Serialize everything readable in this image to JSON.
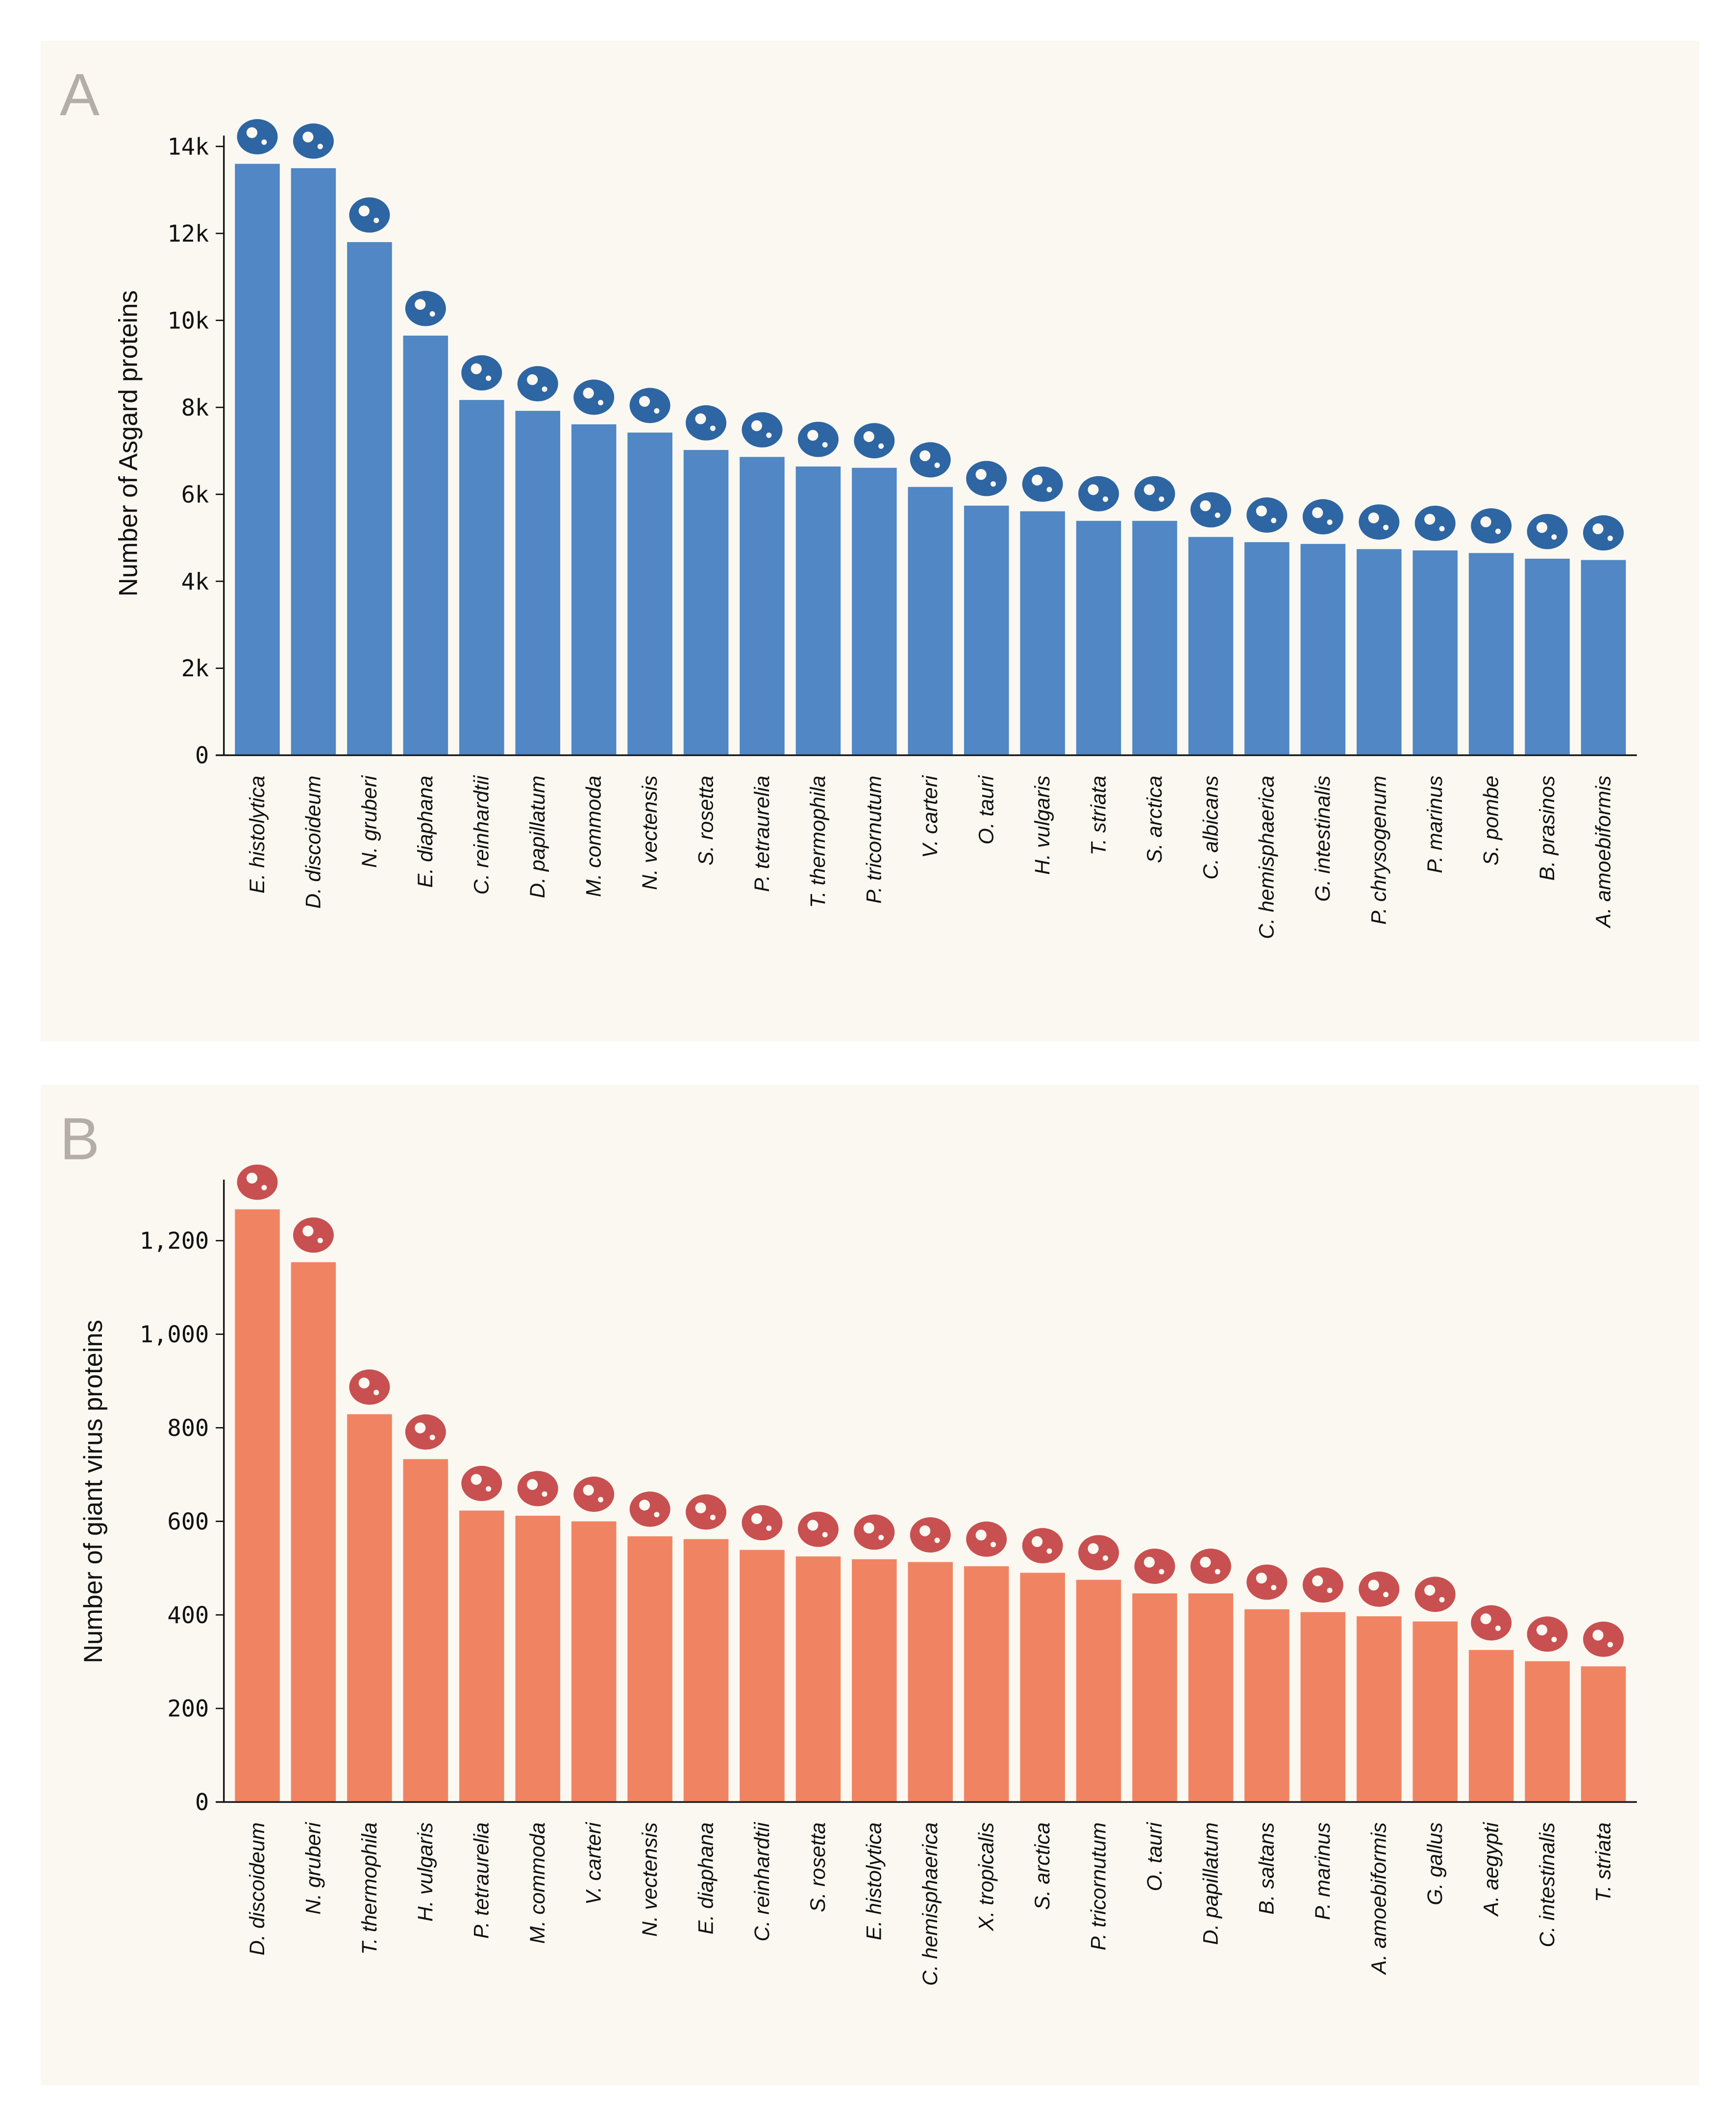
{
  "colors": {
    "panel_bg": "#fbf8f1",
    "page_bg": "#ffffff",
    "letter": "#b5aea6"
  },
  "chart_data": [
    {
      "type": "bar",
      "panel_label": "A",
      "ylabel": "Number of Asgard proteins",
      "xlabel": "",
      "ylim": [
        0,
        14000
      ],
      "yticks": [
        0,
        2000,
        4000,
        6000,
        8000,
        10000,
        12000,
        14000
      ],
      "ytick_labels": [
        "0",
        "2k",
        "4k",
        "6k",
        "8k",
        "10k",
        "12k",
        "14k"
      ],
      "bar_color": "#5087c4",
      "icon_color": "#2e65a3",
      "grid": false,
      "categories": [
        "E. histolytica",
        "D. discoideum",
        "N. gruberi",
        "E. diaphana",
        "C. reinhardtii",
        "D. papillatum",
        "M. commoda",
        "N. vectensis",
        "S. rosetta",
        "P. tetraurelia",
        "T. thermophila",
        "P. tricornutum",
        "V. carteri",
        "O. tauri",
        "H. vulgaris",
        "T. striata",
        "S. arctica",
        "C. albicans",
        "C. hemisphaerica",
        "G. intestinalis",
        "P. chrysogenum",
        "P. marinus",
        "S. pombe",
        "B. prasinos",
        "A. amoebiformis"
      ],
      "values": [
        13600,
        13500,
        11800,
        9650,
        8170,
        7920,
        7610,
        7420,
        7020,
        6860,
        6640,
        6610,
        6170,
        5740,
        5610,
        5390,
        5390,
        5020,
        4900,
        4860,
        4740,
        4710,
        4650,
        4520,
        4490
      ]
    },
    {
      "type": "bar",
      "panel_label": "B",
      "ylabel": "Number of giant virus proteins",
      "xlabel": "",
      "ylim": [
        0,
        1300
      ],
      "yticks": [
        0,
        200,
        400,
        600,
        800,
        1000,
        1200
      ],
      "ytick_labels": [
        "0",
        "200",
        "400",
        "600",
        "800",
        "1,000",
        "1,200"
      ],
      "bar_color": "#f08462",
      "icon_color": "#c85050",
      "grid": false,
      "categories": [
        "D. discoideum",
        "N. gruberi",
        "T. thermophila",
        "H. vulgaris",
        "P. tetraurelia",
        "M. commoda",
        "V. carteri",
        "N. vectensis",
        "E. diaphana",
        "C. reinhardtii",
        "S. rosetta",
        "E. histolytica",
        "C. hemisphaerica",
        "X. tropicalis",
        "S. arctica",
        "P. tricornutum",
        "O. tauri",
        "D. papillatum",
        "B. saltans",
        "P. marinus",
        "A. amoebiformis",
        "G. gallus",
        "A. aegypti",
        "C. intestinalis",
        "T. striata"
      ],
      "values": [
        1267,
        1154,
        829,
        733,
        623,
        612,
        600,
        568,
        562,
        539,
        525,
        519,
        513,
        504,
        490,
        475,
        446,
        446,
        412,
        406,
        397,
        386,
        325,
        301,
        290
      ]
    }
  ]
}
